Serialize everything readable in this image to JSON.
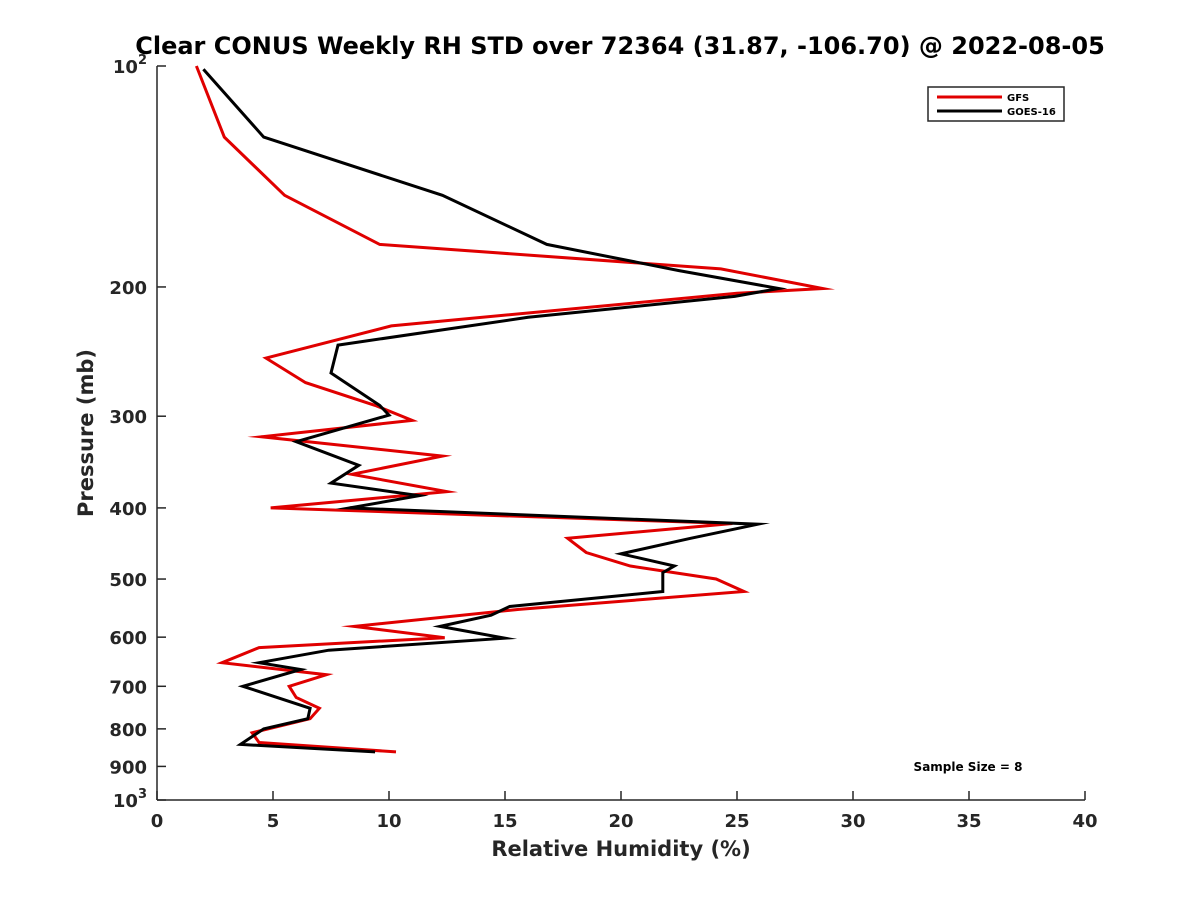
{
  "chart_data": {
    "type": "line",
    "title": "Clear CONUS Weekly RH STD over 72364 (31.87, -106.70) @ 2022-08-05",
    "xlabel": "Relative Humidity (%)",
    "ylabel": "Pressure (mb)",
    "xlim": [
      0,
      40
    ],
    "ylim": [
      100,
      1000
    ],
    "y_scale": "log",
    "y_reversed": true,
    "x_ticks": [
      "0",
      "5",
      "10",
      "15",
      "20",
      "25",
      "30",
      "35",
      "40"
    ],
    "y_ticks": [
      {
        "value": 100,
        "base": "10",
        "exp": "2"
      },
      {
        "value": 200,
        "label": "200"
      },
      {
        "value": 300,
        "label": "300"
      },
      {
        "value": 400,
        "label": "400"
      },
      {
        "value": 500,
        "label": "500"
      },
      {
        "value": 600,
        "label": "600"
      },
      {
        "value": 700,
        "label": "700"
      },
      {
        "value": 800,
        "label": "800"
      },
      {
        "value": 900,
        "label": "900"
      },
      {
        "value": 1000,
        "base": "10",
        "exp": "3"
      }
    ],
    "legend_position": "top-right",
    "grid": false,
    "annotation": "Sample Size = 8",
    "series": [
      {
        "name": "GFS",
        "color": "#e00000",
        "points": [
          [
            1.7,
            100
          ],
          [
            2.9,
            125
          ],
          [
            5.5,
            150
          ],
          [
            9.6,
            175
          ],
          [
            24.3,
            189
          ],
          [
            28.7,
            201
          ],
          [
            25.0,
            204
          ],
          [
            10.1,
            226
          ],
          [
            4.7,
            250
          ],
          [
            6.4,
            270
          ],
          [
            9.4,
            290
          ],
          [
            11.0,
            304
          ],
          [
            4.5,
            320
          ],
          [
            12.3,
            340
          ],
          [
            8.4,
            360
          ],
          [
            12.5,
            380
          ],
          [
            4.9,
            400
          ],
          [
            24.8,
            420
          ],
          [
            17.7,
            440
          ],
          [
            18.5,
            460
          ],
          [
            20.4,
            480
          ],
          [
            24.1,
            500
          ],
          [
            25.3,
            520
          ],
          [
            15.6,
            550
          ],
          [
            8.5,
            580
          ],
          [
            12.4,
            601
          ],
          [
            4.4,
            620
          ],
          [
            2.8,
            650
          ],
          [
            7.3,
            675
          ],
          [
            5.7,
            700
          ],
          [
            6.0,
            725
          ],
          [
            7.0,
            750
          ],
          [
            6.6,
            775
          ],
          [
            4.1,
            810
          ],
          [
            4.4,
            835
          ],
          [
            10.3,
            860
          ]
        ]
      },
      {
        "name": "GOES-16",
        "color": "#000000",
        "points": [
          [
            2.0,
            101
          ],
          [
            4.6,
            125
          ],
          [
            12.3,
            150
          ],
          [
            16.8,
            175
          ],
          [
            22.5,
            190
          ],
          [
            26.8,
            201
          ],
          [
            24.9,
            206
          ],
          [
            16.0,
            220
          ],
          [
            7.8,
            240
          ],
          [
            7.5,
            262
          ],
          [
            9.6,
            290
          ],
          [
            10.0,
            299
          ],
          [
            6.0,
            325
          ],
          [
            8.7,
            350
          ],
          [
            7.5,
            370
          ],
          [
            11.3,
            385
          ],
          [
            8.3,
            400
          ],
          [
            25.9,
            421
          ],
          [
            23.0,
            440
          ],
          [
            20.0,
            462
          ],
          [
            22.3,
            480
          ],
          [
            21.8,
            490
          ],
          [
            21.8,
            520
          ],
          [
            15.2,
            545
          ],
          [
            14.4,
            560
          ],
          [
            12.2,
            580
          ],
          [
            15.0,
            602
          ],
          [
            7.4,
            625
          ],
          [
            4.4,
            650
          ],
          [
            6.2,
            664
          ],
          [
            3.7,
            700
          ],
          [
            4.3,
            710
          ],
          [
            6.6,
            750
          ],
          [
            6.5,
            775
          ],
          [
            4.6,
            800
          ],
          [
            3.6,
            840
          ],
          [
            9.4,
            860
          ]
        ]
      }
    ]
  }
}
